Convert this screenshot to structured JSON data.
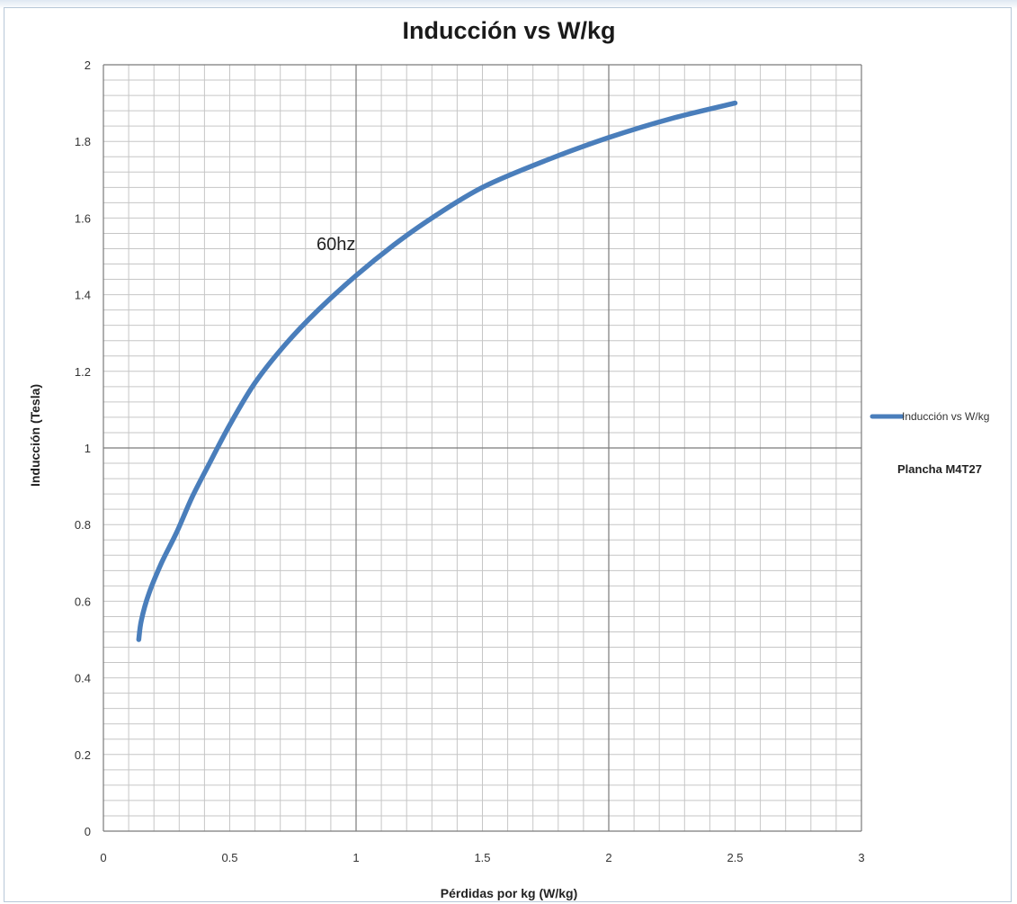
{
  "chart_data": {
    "type": "line",
    "title": "Inducción vs W/kg",
    "xlabel": "Pérdidas por kg (W/kg)",
    "ylabel": "Inducción (Tesla)",
    "xlim": [
      0,
      3
    ],
    "ylim": [
      0,
      2
    ],
    "x_ticks": [
      "0",
      "0.5",
      "1",
      "1.5",
      "2",
      "2.5",
      "3"
    ],
    "y_ticks": [
      "0",
      "0.2",
      "0.4",
      "0.6",
      "0.8",
      "1",
      "1.2",
      "1.4",
      "1.6",
      "1.8",
      "2"
    ],
    "grid": true,
    "legend_position": "right",
    "annotation": "60hz",
    "note": "Plancha  M4T27",
    "series": [
      {
        "name": "Inducción vs W/kg",
        "color": "#4a7ebb",
        "x": [
          0.14,
          0.15,
          0.18,
          0.23,
          0.29,
          0.35,
          0.42,
          0.5,
          0.6,
          0.72,
          0.85,
          1.0,
          1.15,
          1.3,
          1.5,
          1.75,
          2.0,
          2.25,
          2.5
        ],
        "y": [
          0.5,
          0.55,
          0.62,
          0.7,
          0.78,
          0.87,
          0.96,
          1.06,
          1.17,
          1.27,
          1.36,
          1.45,
          1.53,
          1.6,
          1.68,
          1.75,
          1.81,
          1.86,
          1.9
        ]
      }
    ]
  }
}
